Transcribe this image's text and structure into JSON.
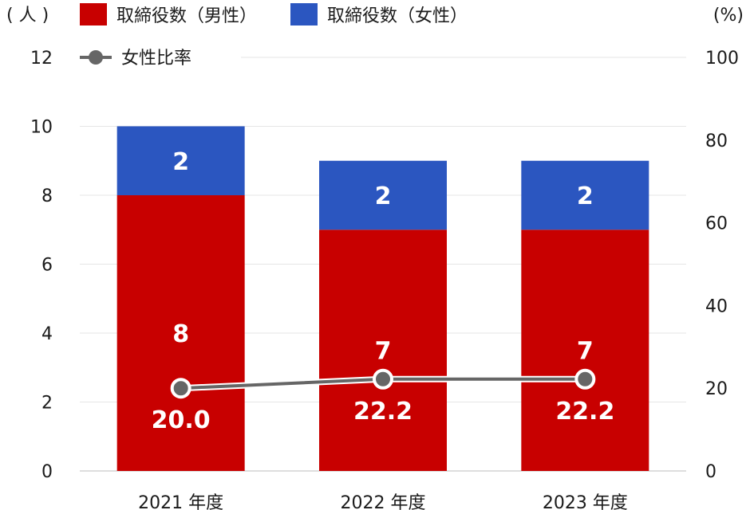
{
  "chart_data": {
    "type": "bar",
    "stacked": true,
    "categories": [
      "2021 年度",
      "2022 年度",
      "2023 年度"
    ],
    "series": [
      {
        "name": "取締役数（男性）",
        "type": "bar",
        "axis": "left",
        "values": [
          8,
          7,
          7
        ],
        "color": "#c80000"
      },
      {
        "name": "取締役数（女性）",
        "type": "bar",
        "axis": "left",
        "values": [
          2,
          2,
          2
        ],
        "color": "#2b56c0"
      },
      {
        "name": "女性比率",
        "type": "line",
        "axis": "right",
        "values": [
          20.0,
          22.2,
          22.2
        ],
        "labels": [
          "20.0",
          "22.2",
          "22.2"
        ],
        "color": "#666666"
      }
    ],
    "y_left": {
      "unit": "( 人 )",
      "ylim": [
        0,
        12
      ],
      "ticks": [
        0,
        2,
        4,
        6,
        8,
        10,
        12
      ]
    },
    "y_right": {
      "unit": "(%)",
      "ylim": [
        0,
        100
      ],
      "ticks": [
        0,
        20,
        40,
        60,
        80,
        100
      ]
    },
    "grid": true,
    "legend_position": "top"
  }
}
